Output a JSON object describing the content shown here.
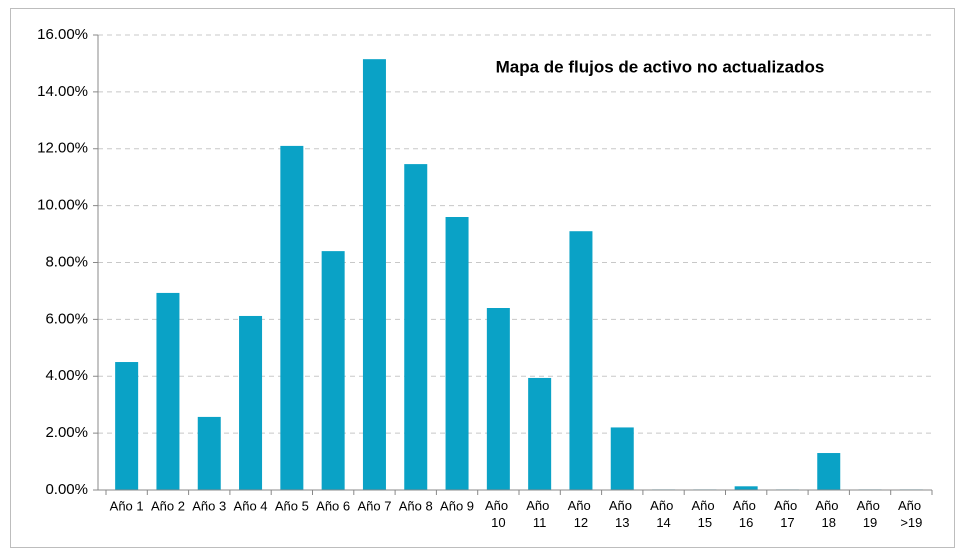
{
  "chart_data": {
    "type": "bar",
    "title": "Mapa de flujos de activo no actualizados",
    "categories": [
      "Año 1",
      "Año 2",
      "Año 3",
      "Año 4",
      "Año 5",
      "Año 6",
      "Año 7",
      "Año 8",
      "Año 9",
      "Año 10",
      "Año 11",
      "Año 12",
      "Año 13",
      "Año 14",
      "Año 15",
      "Año 16",
      "Año 17",
      "Año 18",
      "Año 19",
      "Año >19"
    ],
    "values": [
      4.5,
      6.93,
      2.57,
      6.12,
      12.1,
      8.4,
      15.15,
      11.46,
      9.6,
      6.4,
      3.94,
      9.1,
      2.2,
      0.02,
      0.02,
      0.13,
      0.02,
      1.3,
      0.02,
      0.02
    ],
    "color": "#0aa2c6",
    "ylim": [
      0,
      16
    ],
    "yticks": [
      {
        "value": 0,
        "label": "0.00%"
      },
      {
        "value": 2,
        "label": "2.00%"
      },
      {
        "value": 4,
        "label": "4.00%"
      },
      {
        "value": 6,
        "label": "6.00%"
      },
      {
        "value": 8,
        "label": "8.00%"
      },
      {
        "value": 10,
        "label": "10.00%"
      },
      {
        "value": 12,
        "label": "12.00%"
      },
      {
        "value": 14,
        "label": "14.00%"
      },
      {
        "value": 16,
        "label": "16.00%"
      }
    ],
    "grid": true
  }
}
